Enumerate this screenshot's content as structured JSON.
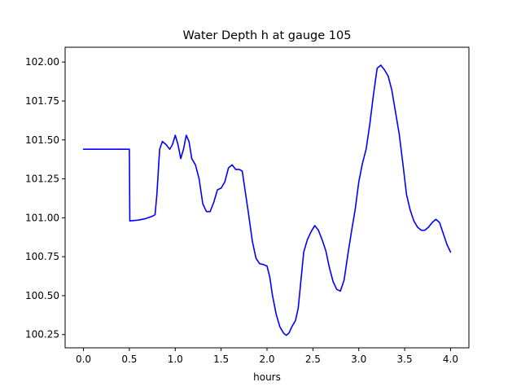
{
  "chart_data": {
    "type": "line",
    "title": "Water Depth h at gauge 105",
    "xlabel": "hours",
    "ylabel": "",
    "xlim": [
      -0.2,
      4.2
    ],
    "ylim": [
      100.165,
      102.095
    ],
    "grid": false,
    "x_ticks": [
      {
        "value": 0.0,
        "label": "0.0"
      },
      {
        "value": 0.5,
        "label": "0.5"
      },
      {
        "value": 1.0,
        "label": "1.0"
      },
      {
        "value": 1.5,
        "label": "1.5"
      },
      {
        "value": 2.0,
        "label": "2.0"
      },
      {
        "value": 2.5,
        "label": "2.5"
      },
      {
        "value": 3.0,
        "label": "3.0"
      },
      {
        "value": 3.5,
        "label": "3.5"
      },
      {
        "value": 4.0,
        "label": "4.0"
      }
    ],
    "y_ticks": [
      {
        "value": 100.25,
        "label": "100.25"
      },
      {
        "value": 100.5,
        "label": "100.50"
      },
      {
        "value": 100.75,
        "label": "100.75"
      },
      {
        "value": 101.0,
        "label": "101.00"
      },
      {
        "value": 101.25,
        "label": "101.25"
      },
      {
        "value": 101.5,
        "label": "101.50"
      },
      {
        "value": 101.75,
        "label": "101.75"
      },
      {
        "value": 102.0,
        "label": "102.00"
      }
    ],
    "series": [
      {
        "color": "#0000ff",
        "x": [
          0.0,
          0.25,
          0.45,
          0.495,
          0.5,
          0.505,
          0.6,
          0.68,
          0.75,
          0.78,
          0.8,
          0.83,
          0.86,
          0.9,
          0.94,
          0.97,
          1.0,
          1.03,
          1.06,
          1.09,
          1.12,
          1.15,
          1.18,
          1.22,
          1.26,
          1.3,
          1.34,
          1.38,
          1.42,
          1.46,
          1.5,
          1.54,
          1.58,
          1.62,
          1.66,
          1.7,
          1.73,
          1.76,
          1.8,
          1.84,
          1.88,
          1.92,
          1.96,
          2.0,
          2.03,
          2.06,
          2.1,
          2.14,
          2.18,
          2.21,
          2.24,
          2.27,
          2.31,
          2.34,
          2.37,
          2.4,
          2.44,
          2.48,
          2.52,
          2.56,
          2.6,
          2.64,
          2.68,
          2.72,
          2.76,
          2.8,
          2.84,
          2.88,
          2.92,
          2.96,
          3.0,
          3.04,
          3.08,
          3.12,
          3.16,
          3.2,
          3.24,
          3.28,
          3.32,
          3.36,
          3.4,
          3.44,
          3.48,
          3.52,
          3.56,
          3.6,
          3.64,
          3.68,
          3.72,
          3.76,
          3.8,
          3.84,
          3.88,
          3.92,
          3.96,
          4.0
        ],
        "y": [
          101.44,
          101.44,
          101.44,
          101.44,
          101.44,
          100.98,
          100.985,
          100.995,
          101.01,
          101.02,
          101.15,
          101.44,
          101.49,
          101.47,
          101.44,
          101.47,
          101.53,
          101.47,
          101.38,
          101.44,
          101.53,
          101.49,
          101.38,
          101.34,
          101.25,
          101.09,
          101.04,
          101.04,
          101.1,
          101.18,
          101.19,
          101.23,
          101.32,
          101.34,
          101.31,
          101.31,
          101.3,
          101.18,
          101.02,
          100.85,
          100.74,
          100.705,
          100.7,
          100.69,
          100.62,
          100.5,
          100.38,
          100.3,
          100.26,
          100.245,
          100.26,
          100.3,
          100.34,
          100.42,
          100.6,
          100.78,
          100.86,
          100.91,
          100.95,
          100.92,
          100.86,
          100.79,
          100.68,
          100.59,
          100.54,
          100.53,
          100.6,
          100.76,
          100.91,
          101.05,
          101.23,
          101.35,
          101.44,
          101.6,
          101.79,
          101.96,
          101.98,
          101.95,
          101.91,
          101.82,
          101.68,
          101.54,
          101.35,
          101.15,
          101.05,
          100.98,
          100.94,
          100.92,
          100.92,
          100.94,
          100.97,
          100.99,
          100.97,
          100.9,
          100.83,
          100.78
        ]
      }
    ]
  }
}
